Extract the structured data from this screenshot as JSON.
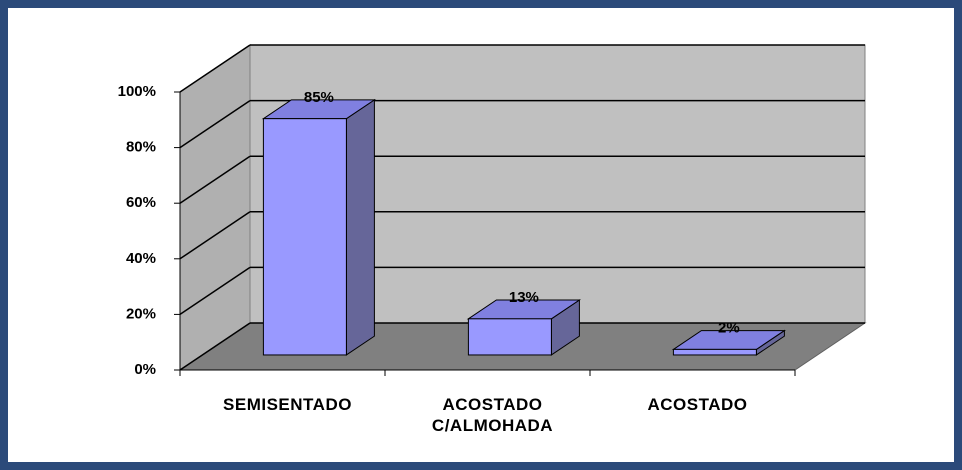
{
  "chart_data": {
    "type": "bar3d",
    "categories": [
      "SEMISENTADO",
      "ACOSTADO C/ALMOHADA",
      "ACOSTADO"
    ],
    "values": [
      85,
      13,
      2
    ],
    "value_labels": [
      "85%",
      "13%",
      "2%"
    ],
    "color": "#9999ff",
    "ylim": [
      0,
      100
    ],
    "yticks": [
      {
        "value": 0,
        "label": "0%"
      },
      {
        "value": 20,
        "label": "20%"
      },
      {
        "value": 40,
        "label": "40%"
      },
      {
        "value": 60,
        "label": "60%"
      },
      {
        "value": 80,
        "label": "80%"
      },
      {
        "value": 100,
        "label": "100%"
      }
    ],
    "grid": true
  }
}
